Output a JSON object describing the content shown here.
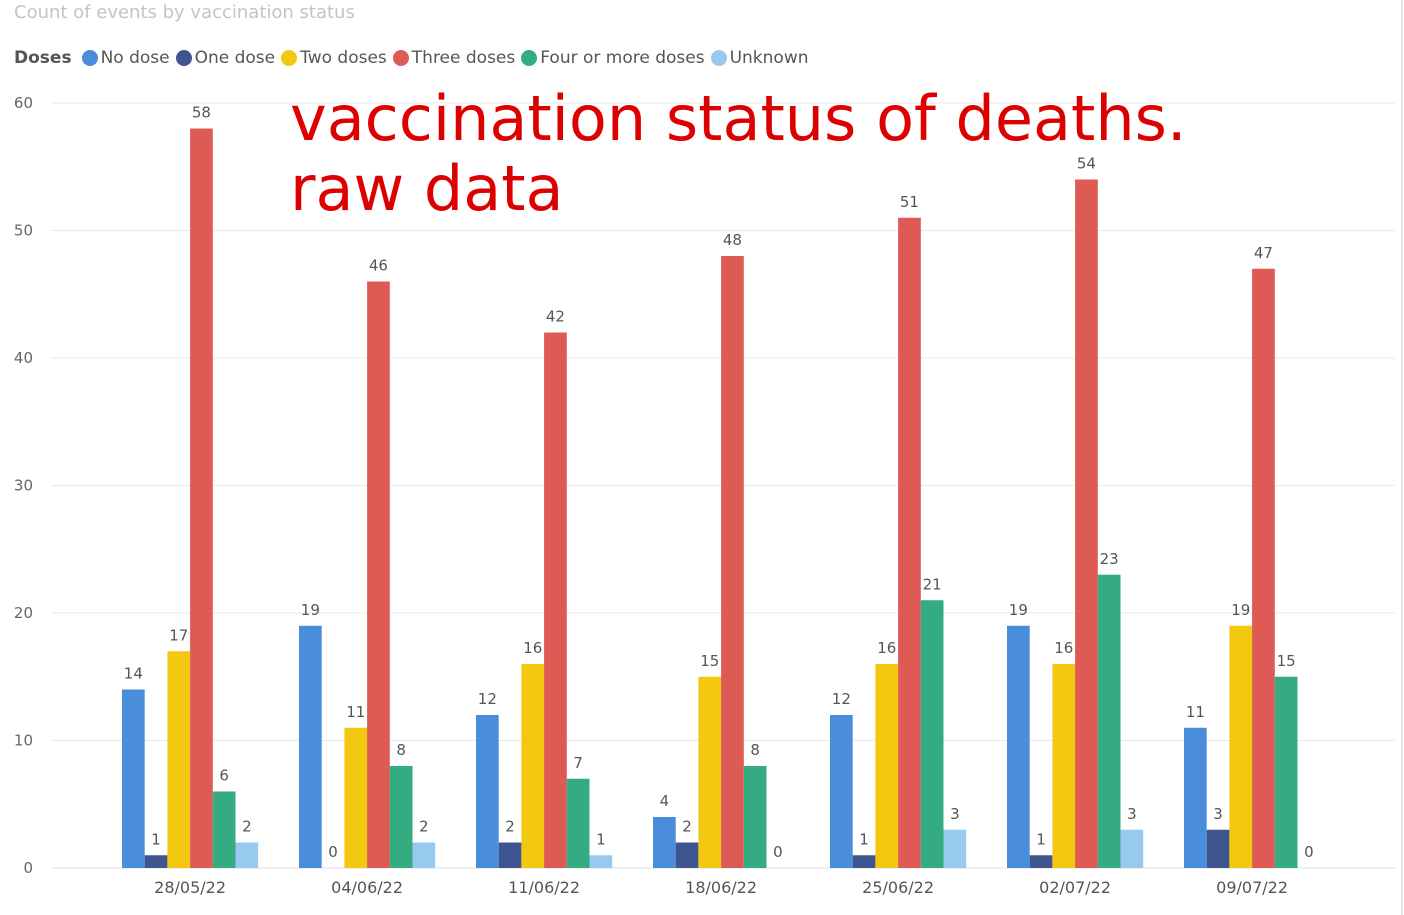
{
  "title": "Count of events by vaccination status",
  "overlay_text": [
    "vaccination status of deaths.",
    "raw data"
  ],
  "legend": {
    "title": "Doses",
    "items": [
      {
        "label": "No dose",
        "color": "#4a8ddb"
      },
      {
        "label": "One dose",
        "color": "#3f5590"
      },
      {
        "label": "Two doses",
        "color": "#f2c811"
      },
      {
        "label": "Three doses",
        "color": "#de5a55"
      },
      {
        "label": "Four or more doses",
        "color": "#34ab80"
      },
      {
        "label": "Unknown",
        "color": "#98c9ef"
      }
    ]
  },
  "chart_data": {
    "type": "bar",
    "title": "Count of events by vaccination status",
    "legend_title": "Doses",
    "legend_placement": "top-left",
    "categories": [
      "28/05/22",
      "04/06/22",
      "11/06/22",
      "18/06/22",
      "25/06/22",
      "02/07/22",
      "09/07/22"
    ],
    "ylim": [
      0,
      60
    ],
    "yticks": [
      0,
      10,
      20,
      30,
      40,
      50,
      60
    ],
    "grid": true,
    "series": [
      {
        "name": "No dose",
        "color": "#4a8ddb",
        "values": [
          14,
          19,
          12,
          4,
          12,
          19,
          11
        ]
      },
      {
        "name": "One dose",
        "color": "#3f5590",
        "values": [
          1,
          0,
          2,
          2,
          1,
          1,
          3
        ]
      },
      {
        "name": "Two doses",
        "color": "#f2c811",
        "values": [
          17,
          11,
          16,
          15,
          16,
          16,
          19
        ]
      },
      {
        "name": "Three doses",
        "color": "#de5a55",
        "values": [
          58,
          46,
          42,
          48,
          51,
          54,
          47
        ]
      },
      {
        "name": "Four or more doses",
        "color": "#34ab80",
        "values": [
          6,
          8,
          7,
          8,
          21,
          23,
          15
        ]
      },
      {
        "name": "Unknown",
        "color": "#98c9ef",
        "values": [
          2,
          2,
          1,
          0,
          3,
          3,
          0
        ]
      }
    ]
  }
}
